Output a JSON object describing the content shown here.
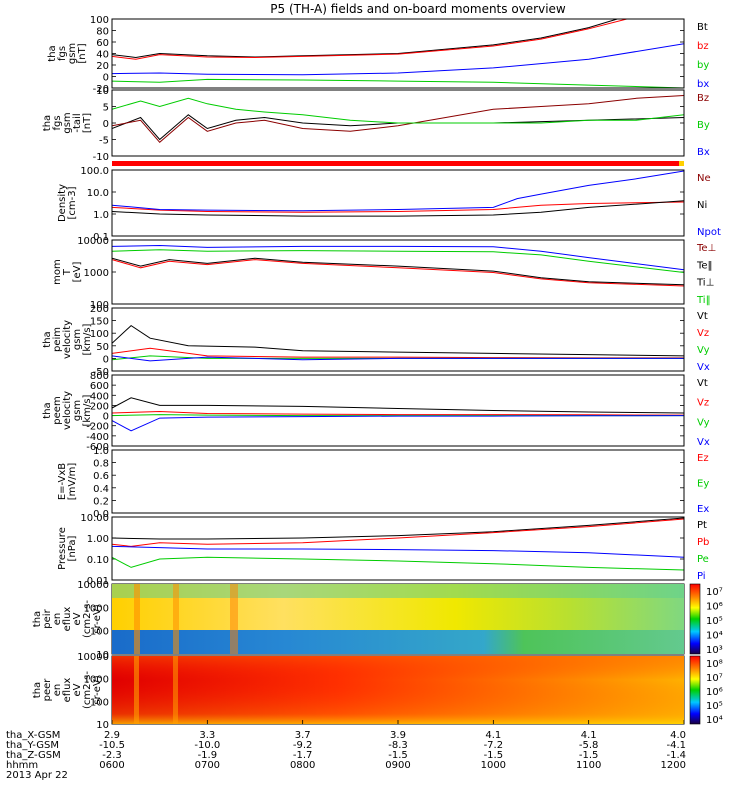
{
  "title": "P5 (TH-A) fields and on-board moments overview",
  "date": "2013 Apr 22",
  "ephem_labels": [
    "tha_X-GSM",
    "tha_Y-GSM",
    "tha_Z-GSM",
    "hhmm"
  ],
  "ephem_rows": [
    [
      "2.9",
      "3.3",
      "3.7",
      "3.9",
      "4.1",
      "4.1",
      "4.0"
    ],
    [
      "-10.5",
      "-10.0",
      "-9.2",
      "-8.3",
      "-7.2",
      "-5.8",
      "-4.1"
    ],
    [
      "-2.3",
      "-1.9",
      "-1.7",
      "-1.5",
      "-1.5",
      "-1.5",
      "-1.4"
    ],
    [
      "0600",
      "0700",
      "0800",
      "0900",
      "1000",
      "1100",
      "1200"
    ]
  ],
  "colors": {
    "black": "#000000",
    "red": "#ff0000",
    "darkred": "#8b0000",
    "green": "#00cc00",
    "blue": "#0000ff"
  },
  "chart_data": [
    {
      "type": "line",
      "name": "fgs_gsm",
      "ylabel": [
        "tha",
        "fgs",
        "gsm",
        "[nT]"
      ],
      "ylim": [
        -20,
        100
      ],
      "ticks": [
        "100",
        "80",
        "60",
        "40",
        "20",
        "0",
        "-20"
      ],
      "xlim": [
        "0600",
        "1200"
      ],
      "legend": [
        "Bt",
        "bz",
        "by",
        "bx"
      ],
      "series": [
        {
          "name": "Bt",
          "color": "#000000",
          "x": [
            6.0,
            6.25,
            6.5,
            7.0,
            7.5,
            8.0,
            9.0,
            10.0,
            10.5,
            11.0,
            11.3
          ],
          "y": [
            38,
            33,
            40,
            36,
            34,
            36,
            40,
            55,
            67,
            85,
            100
          ]
        },
        {
          "name": "bz",
          "color": "#ff0000",
          "x": [
            6.0,
            6.25,
            6.5,
            7.0,
            7.5,
            8.0,
            9.0,
            10.0,
            10.5,
            11.0,
            11.4
          ],
          "y": [
            35,
            30,
            38,
            34,
            33,
            35,
            39,
            53,
            65,
            83,
            100
          ]
        },
        {
          "name": "by",
          "color": "#0000ff",
          "x": [
            6.0,
            6.5,
            7.0,
            8.0,
            9.0,
            10.0,
            11.0,
            12.0
          ],
          "y": [
            5,
            6,
            4,
            3,
            6,
            15,
            30,
            57
          ]
        },
        {
          "name": "bx",
          "color": "#00cc00",
          "x": [
            6.0,
            6.5,
            7.0,
            8.0,
            9.0,
            10.0,
            11.0,
            12.0
          ],
          "y": [
            -8,
            -10,
            -5,
            -6,
            -8,
            -10,
            -15,
            -25
          ]
        }
      ]
    },
    {
      "type": "line",
      "name": "fgs_gsm_detrended",
      "ylabel": [
        "tha",
        "fgs",
        "gsm",
        "-tail",
        "[nT]"
      ],
      "ylim": [
        -12,
        12
      ],
      "ticks": [
        "10",
        "5",
        "0",
        "-5",
        "-10"
      ],
      "xlim": [
        "0600",
        "1200"
      ],
      "legend": [
        "Bz",
        "By",
        "Bx"
      ],
      "series": [
        {
          "name": "Bx",
          "color": "#000000",
          "x": [
            6.0,
            6.3,
            6.5,
            6.8,
            7.0,
            7.3,
            7.6,
            8.0,
            8.5,
            9.0,
            10.0,
            11.0,
            12.0
          ],
          "y": [
            -2,
            2,
            -6,
            3,
            -2,
            1,
            2,
            0,
            -1,
            0,
            0,
            1,
            2
          ]
        },
        {
          "name": "Bz",
          "color": "#8b0000",
          "x": [
            6.0,
            6.3,
            6.5,
            6.8,
            7.0,
            7.3,
            7.6,
            8.0,
            8.5,
            9.0,
            9.5,
            10.0,
            10.5,
            11.0,
            11.5,
            12.0
          ],
          "y": [
            -1,
            1,
            -7,
            2,
            -3,
            0,
            1,
            -2,
            -3,
            -1,
            2,
            5,
            6,
            7,
            9,
            10
          ]
        },
        {
          "name": "By",
          "color": "#00cc00",
          "x": [
            6.0,
            6.3,
            6.5,
            6.8,
            7.0,
            7.3,
            7.6,
            8.0,
            8.5,
            9.0,
            9.5,
            10.0,
            10.5,
            11.0,
            11.5,
            12.0
          ],
          "y": [
            5,
            8,
            6,
            9,
            7,
            5,
            4,
            3,
            1,
            0,
            0,
            0,
            0,
            1,
            1,
            3
          ]
        }
      ]
    },
    {
      "type": "line",
      "name": "density",
      "ylabel": [
        "Density",
        "[cm-3]"
      ],
      "scale": "log",
      "ylim": [
        0.1,
        100.0
      ],
      "ticks": [
        "100.0",
        "10.0",
        "1.0",
        "0.1"
      ],
      "xlim": [
        "0600",
        "1200"
      ],
      "legend": [
        "Ne",
        "Ni",
        "Npot"
      ],
      "series": [
        {
          "name": "Ne",
          "color": "#ff0000",
          "x": [
            6.0,
            6.5,
            7.0,
            8.0,
            9.0,
            10.0,
            10.5,
            11.0,
            12.0
          ],
          "y": [
            2.0,
            1.5,
            1.3,
            1.2,
            1.3,
            1.6,
            2.5,
            3.0,
            3.5
          ]
        },
        {
          "name": "Ni",
          "color": "#000000",
          "x": [
            6.0,
            6.5,
            7.0,
            8.0,
            9.0,
            10.0,
            10.5,
            11.0,
            12.0
          ],
          "y": [
            1.3,
            1.0,
            0.9,
            0.8,
            0.8,
            0.9,
            1.2,
            2.0,
            4.0
          ]
        },
        {
          "name": "Npot",
          "color": "#0000ff",
          "x": [
            6.0,
            6.5,
            7.0,
            8.0,
            9.0,
            10.0,
            10.25,
            10.5,
            11.0,
            11.5,
            12.0
          ],
          "y": [
            2.5,
            1.6,
            1.5,
            1.4,
            1.6,
            2.0,
            5.0,
            8.0,
            20.0,
            40.0,
            90.0
          ]
        }
      ]
    },
    {
      "type": "line",
      "name": "mom_temperature",
      "ylabel": [
        "mom",
        "T",
        "[eV]"
      ],
      "scale": "log",
      "ylim": [
        10,
        10000
      ],
      "ticks": [
        "10000",
        "1000",
        "100"
      ],
      "xlim": [
        "0600",
        "1200"
      ],
      "legend": [
        "Te⊥",
        "Te‖",
        "Ti⊥",
        "Ti‖"
      ],
      "series": [
        {
          "name": "Te⊥",
          "color": "#ff0000",
          "x": [
            6.0,
            6.3,
            6.6,
            7.0,
            7.5,
            8.0,
            9.0,
            10.0,
            10.5,
            11.0,
            12.0
          ],
          "y": [
            1200,
            500,
            1000,
            700,
            1200,
            800,
            500,
            300,
            150,
            100,
            70
          ]
        },
        {
          "name": "Te‖",
          "color": "#000000",
          "x": [
            6.0,
            6.3,
            6.6,
            7.0,
            7.5,
            8.0,
            9.0,
            10.0,
            10.5,
            11.0,
            12.0
          ],
          "y": [
            1400,
            600,
            1200,
            800,
            1400,
            900,
            600,
            350,
            170,
            110,
            80
          ]
        },
        {
          "name": "Ti⊥",
          "color": "#0000ff",
          "x": [
            6.0,
            6.5,
            7.0,
            8.0,
            9.0,
            10.0,
            10.5,
            11.0,
            12.0
          ],
          "y": [
            5000,
            5500,
            4500,
            5000,
            5000,
            4800,
            3000,
            1500,
            400
          ]
        },
        {
          "name": "Ti‖",
          "color": "#00cc00",
          "x": [
            6.0,
            6.5,
            7.0,
            8.0,
            9.0,
            10.0,
            10.5,
            11.0,
            12.0
          ],
          "y": [
            3000,
            3500,
            3000,
            3200,
            3000,
            2800,
            2000,
            1000,
            300
          ]
        }
      ]
    },
    {
      "type": "line",
      "name": "peim_velocity",
      "ylabel": [
        "tha",
        "peim",
        "velocity",
        "gsm",
        "[km/s]"
      ],
      "ylim": [
        -50,
        200
      ],
      "ticks": [
        "200",
        "150",
        "100",
        "50",
        "0",
        "-50"
      ],
      "xlim": [
        "0600",
        "1200"
      ],
      "legend": [
        "Vt",
        "Vz",
        "Vy",
        "Vx"
      ],
      "series": [
        {
          "name": "Vt",
          "color": "#000000",
          "x": [
            6.0,
            6.2,
            6.4,
            6.8,
            7.5,
            8.0,
            9.0,
            10.0,
            11.0,
            12.0
          ],
          "y": [
            60,
            130,
            80,
            50,
            45,
            30,
            25,
            20,
            15,
            10
          ]
        },
        {
          "name": "Vz",
          "color": "#ff0000",
          "x": [
            6.0,
            6.4,
            7.0,
            8.0,
            9.0,
            10.0,
            11.0,
            12.0
          ],
          "y": [
            20,
            40,
            10,
            5,
            5,
            3,
            2,
            2
          ]
        },
        {
          "name": "Vy",
          "color": "#00cc00",
          "x": [
            6.0,
            6.4,
            7.0,
            8.0,
            9.0,
            10.0,
            11.0,
            12.0
          ],
          "y": [
            -5,
            10,
            0,
            0,
            0,
            0,
            0,
            0
          ]
        },
        {
          "name": "Vx",
          "color": "#0000ff",
          "x": [
            6.0,
            6.4,
            7.0,
            8.0,
            9.0,
            10.0,
            11.0,
            12.0
          ],
          "y": [
            10,
            -10,
            5,
            -5,
            0,
            0,
            0,
            0
          ]
        }
      ]
    },
    {
      "type": "line",
      "name": "peem_velocity",
      "ylabel": [
        "tha",
        "peem",
        "velocity",
        "gsm",
        "[km/s]"
      ],
      "ylim": [
        -600,
        800
      ],
      "ticks": [
        "800",
        "600",
        "400",
        "200",
        "0",
        "-200",
        "-400",
        "-600"
      ],
      "xlim": [
        "0600",
        "1200"
      ],
      "legend": [
        "Vt",
        "Vz",
        "Vy",
        "Vx"
      ],
      "series": [
        {
          "name": "Vt",
          "color": "#000000",
          "x": [
            6.0,
            6.2,
            6.5,
            7.0,
            8.0,
            9.0,
            10.0,
            11.0,
            12.0
          ],
          "y": [
            150,
            350,
            200,
            200,
            180,
            140,
            100,
            70,
            50
          ]
        },
        {
          "name": "Vz",
          "color": "#ff0000",
          "x": [
            6.0,
            6.5,
            7.0,
            8.0,
            9.0,
            10.0,
            11.0,
            12.0
          ],
          "y": [
            50,
            80,
            40,
            30,
            20,
            20,
            15,
            10
          ]
        },
        {
          "name": "Vy",
          "color": "#00cc00",
          "x": [
            6.0,
            6.5,
            7.0,
            8.0,
            9.0,
            10.0,
            11.0,
            12.0
          ],
          "y": [
            0,
            20,
            10,
            0,
            0,
            0,
            0,
            0
          ]
        },
        {
          "name": "Vx",
          "color": "#0000ff",
          "x": [
            6.0,
            6.2,
            6.5,
            7.0,
            8.0,
            9.0,
            10.0,
            11.0,
            12.0
          ],
          "y": [
            -100,
            -300,
            -50,
            -30,
            -20,
            -10,
            -10,
            -5,
            0
          ]
        }
      ]
    },
    {
      "type": "line",
      "name": "e_field",
      "ylabel": [
        "E=-VxB",
        "[mV/m]"
      ],
      "ylim": [
        0,
        1
      ],
      "ticks": [
        "1.0",
        "0.8",
        "0.6",
        "0.4",
        "0.2",
        "0.0"
      ],
      "xlim": [
        "0600",
        "1200"
      ],
      "legend": [
        "Ez",
        "Ey",
        "Ex"
      ],
      "series": []
    },
    {
      "type": "line",
      "name": "pressure",
      "ylabel": [
        "Pressure",
        "[nPa]"
      ],
      "scale": "log",
      "ylim": [
        0.01,
        10
      ],
      "ticks": [
        "10.00",
        "1.00",
        "0.10",
        "0.01"
      ],
      "xlim": [
        "0600",
        "1200"
      ],
      "legend": [
        "Pt",
        "Pb",
        "Pe",
        "Pi"
      ],
      "series": [
        {
          "name": "Pt",
          "color": "#000000",
          "x": [
            6.0,
            6.5,
            7.0,
            8.0,
            9.0,
            10.0,
            11.0,
            12.0
          ],
          "y": [
            1.0,
            0.9,
            0.9,
            1.0,
            1.3,
            2.0,
            4.0,
            9.0
          ]
        },
        {
          "name": "Pb",
          "color": "#ff0000",
          "x": [
            6.0,
            6.2,
            6.5,
            7.0,
            8.0,
            9.0,
            10.0,
            11.0,
            12.0
          ],
          "y": [
            0.5,
            0.4,
            0.6,
            0.5,
            0.6,
            1.0,
            1.8,
            3.5,
            8.0
          ]
        },
        {
          "name": "Pe",
          "color": "#00cc00",
          "x": [
            6.0,
            6.2,
            6.5,
            7.0,
            8.0,
            9.0,
            10.0,
            11.0,
            12.0
          ],
          "y": [
            0.12,
            0.04,
            0.1,
            0.12,
            0.1,
            0.08,
            0.06,
            0.04,
            0.03
          ]
        },
        {
          "name": "Pi",
          "color": "#0000ff",
          "x": [
            6.0,
            6.5,
            7.0,
            8.0,
            9.0,
            10.0,
            11.0,
            12.0
          ],
          "y": [
            0.4,
            0.35,
            0.3,
            0.3,
            0.28,
            0.25,
            0.2,
            0.12
          ]
        }
      ]
    },
    {
      "type": "heatmap",
      "name": "peir_en_eflux",
      "ylabel": [
        "tha",
        "peir",
        "en",
        "eflux",
        "eV",
        "(cm2-s-",
        "sr-eV)"
      ],
      "scale": "log",
      "ylim": [
        10,
        10000
      ],
      "ticks": [
        "10000",
        "1000",
        "100",
        "10"
      ],
      "xlim": [
        "0600",
        "1200"
      ],
      "colorbar_ticks": [
        "10⁷",
        "10⁶",
        "10⁵",
        "10⁴",
        "10³"
      ]
    },
    {
      "type": "heatmap",
      "name": "peer_en_eflux",
      "ylabel": [
        "tha",
        "peer",
        "en",
        "eflux",
        "eV",
        "(cm2-s-",
        "sr-eV)"
      ],
      "scale": "log",
      "ylim": [
        10,
        10000
      ],
      "ticks": [
        "10000",
        "1000",
        "100",
        "10"
      ],
      "xlim": [
        "0600",
        "1200"
      ],
      "colorbar_ticks": [
        "10⁸",
        "10⁷",
        "10⁶",
        "10⁵",
        "10⁴"
      ]
    }
  ]
}
